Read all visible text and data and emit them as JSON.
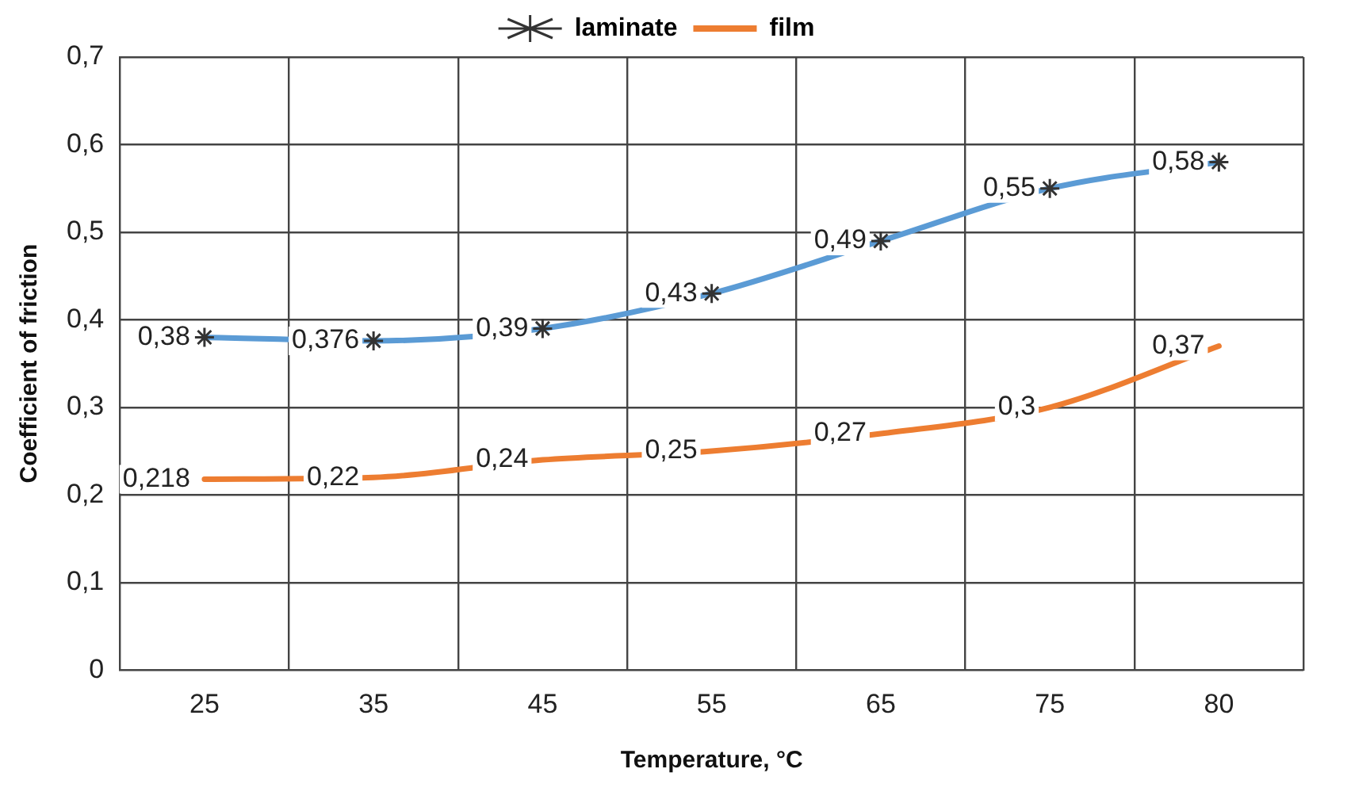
{
  "chart_data": {
    "type": "line",
    "xlabel": "Temperature, °C",
    "ylabel": "Coefficient of friction",
    "categories": [
      "25",
      "35",
      "45",
      "55",
      "65",
      "75",
      "80"
    ],
    "series": [
      {
        "name": "laminate",
        "color": "#5b9bd5",
        "marker": "cross",
        "values": [
          0.38,
          0.376,
          0.39,
          0.43,
          0.49,
          0.55,
          0.58
        ],
        "value_labels": [
          "0,38",
          "0,376",
          "0,39",
          "0,43",
          "0,49",
          "0,55",
          "0,58"
        ]
      },
      {
        "name": "film",
        "color": "#ed7d31",
        "marker": "none",
        "values": [
          0.218,
          0.22,
          0.24,
          0.25,
          0.27,
          0.3,
          0.37
        ],
        "value_labels": [
          "0,218",
          "0,22",
          "0,24",
          "0,25",
          "0,27",
          "0,3",
          "0,37"
        ]
      }
    ],
    "ylim": [
      0,
      0.7
    ],
    "yticks": [
      0,
      {
        "value": 0.1,
        "label": "0,1"
      },
      {
        "value": 0.2,
        "label": "0,2"
      },
      {
        "value": 0.3,
        "label": "0,3"
      },
      {
        "value": 0.4,
        "label": "0,4"
      },
      {
        "value": 0.5,
        "label": "0,5"
      },
      {
        "value": 0.6,
        "label": "0,6"
      },
      {
        "value": 0.7,
        "label": "0,7"
      }
    ],
    "grid": true,
    "legend": "top"
  }
}
